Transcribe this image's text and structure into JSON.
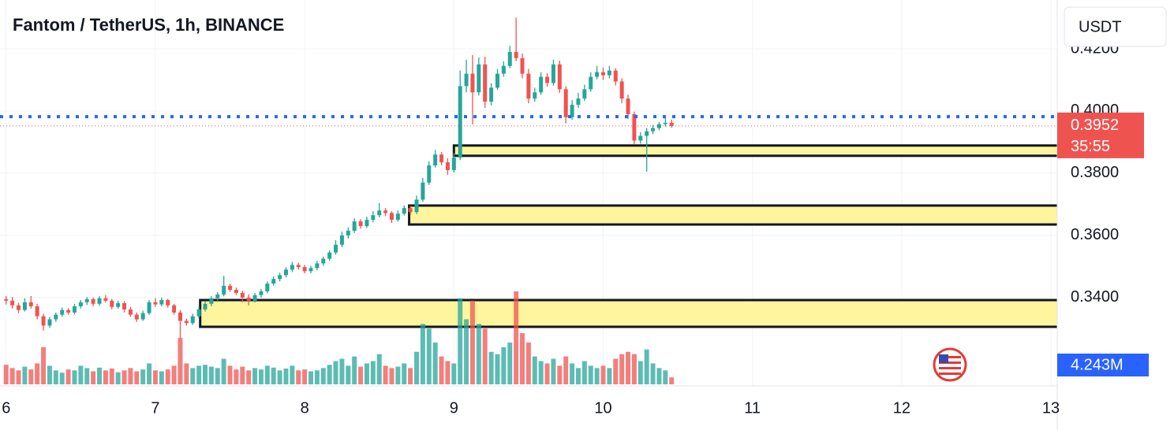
{
  "chart_data": {
    "type": "candlestick",
    "title": "Fantom / TetherUS, 1h, BINANCE",
    "currency": "USDT",
    "xlim": [
      5.959,
      13.042
    ],
    "xticks": [
      6,
      7,
      8,
      9,
      10,
      11,
      12,
      13
    ],
    "ylim": [
      0.3116,
      0.4357
    ],
    "yticks": [
      {
        "value": 0.34,
        "label": "0.3400"
      },
      {
        "value": 0.36,
        "label": "0.3600"
      },
      {
        "value": 0.38,
        "label": "0.3800"
      },
      {
        "value": 0.4,
        "label": "0.4000"
      },
      {
        "value": 0.42,
        "label": "0.4200"
      }
    ],
    "grid": true,
    "up_color": "#26a69a",
    "down_color": "#ef5350",
    "x": [
      6,
      6.0417,
      6.0833,
      6.125,
      6.1667,
      6.2083,
      6.25,
      6.2917,
      6.3333,
      6.375,
      6.4167,
      6.4583,
      6.5,
      6.5417,
      6.5833,
      6.625,
      6.6667,
      6.7083,
      6.75,
      6.7917,
      6.8333,
      6.875,
      6.9167,
      6.9583,
      7,
      7.0417,
      7.0833,
      7.125,
      7.1667,
      7.2083,
      7.25,
      7.2917,
      7.3333,
      7.375,
      7.4167,
      7.4583,
      7.5,
      7.5417,
      7.5833,
      7.625,
      7.6667,
      7.7083,
      7.75,
      7.7917,
      7.8333,
      7.875,
      7.9167,
      7.9583,
      8,
      8.0417,
      8.0833,
      8.125,
      8.1667,
      8.2083,
      8.25,
      8.2917,
      8.3333,
      8.375,
      8.4167,
      8.4583,
      8.5,
      8.5417,
      8.5833,
      8.625,
      8.6667,
      8.7083,
      8.75,
      8.7917,
      8.8333,
      8.875,
      8.9167,
      8.9583,
      9,
      9.0417,
      9.0833,
      9.125,
      9.1667,
      9.2083,
      9.25,
      9.2917,
      9.3333,
      9.375,
      9.4167,
      9.4583,
      9.5,
      9.5417,
      9.5833,
      9.625,
      9.6667,
      9.7083,
      9.75,
      9.7917,
      9.8333,
      9.875,
      9.9167,
      9.9583,
      10,
      10.0417,
      10.0833,
      10.125,
      10.1667,
      10.2083,
      10.25,
      10.2917,
      10.3333,
      10.375,
      10.4167,
      10.4583
    ],
    "candles": [
      [
        0.3395,
        0.3405,
        0.3378,
        0.339
      ],
      [
        0.339,
        0.3402,
        0.3365,
        0.3375
      ],
      [
        0.3375,
        0.3383,
        0.335,
        0.336
      ],
      [
        0.336,
        0.3398,
        0.3355,
        0.3385
      ],
      [
        0.3385,
        0.3405,
        0.3365,
        0.3372
      ],
      [
        0.3372,
        0.338,
        0.333,
        0.334
      ],
      [
        0.334,
        0.3348,
        0.3294,
        0.331
      ],
      [
        0.331,
        0.3338,
        0.3302,
        0.333
      ],
      [
        0.333,
        0.3352,
        0.3322,
        0.3345
      ],
      [
        0.3345,
        0.3368,
        0.3338,
        0.336
      ],
      [
        0.336,
        0.3366,
        0.3345,
        0.3352
      ],
      [
        0.3352,
        0.338,
        0.3346,
        0.3372
      ],
      [
        0.3372,
        0.3392,
        0.3365,
        0.3385
      ],
      [
        0.3385,
        0.3402,
        0.3376,
        0.3395
      ],
      [
        0.3395,
        0.34,
        0.3372,
        0.338
      ],
      [
        0.338,
        0.3405,
        0.3374,
        0.3398
      ],
      [
        0.3398,
        0.3408,
        0.3384,
        0.339
      ],
      [
        0.339,
        0.3396,
        0.3362,
        0.337
      ],
      [
        0.337,
        0.339,
        0.3364,
        0.3382
      ],
      [
        0.3382,
        0.3388,
        0.3352,
        0.3362
      ],
      [
        0.3362,
        0.337,
        0.3338,
        0.3345
      ],
      [
        0.3345,
        0.3352,
        0.3322,
        0.333
      ],
      [
        0.333,
        0.3358,
        0.3325,
        0.335
      ],
      [
        0.335,
        0.3392,
        0.3345,
        0.3385
      ],
      [
        0.3385,
        0.3398,
        0.337,
        0.3378
      ],
      [
        0.3378,
        0.34,
        0.3372,
        0.3392
      ],
      [
        0.3392,
        0.3396,
        0.3368,
        0.3375
      ],
      [
        0.3375,
        0.338,
        0.3345,
        0.3352
      ],
      [
        0.3352,
        0.336,
        0.327,
        0.3325
      ],
      [
        0.3325,
        0.3332,
        0.331,
        0.3318
      ],
      [
        0.3318,
        0.3348,
        0.3312,
        0.334
      ],
      [
        0.334,
        0.337,
        0.3334,
        0.3362
      ],
      [
        0.3362,
        0.3388,
        0.3355,
        0.338
      ],
      [
        0.338,
        0.3405,
        0.3372,
        0.3398
      ],
      [
        0.3398,
        0.3418,
        0.339,
        0.341
      ],
      [
        0.341,
        0.347,
        0.3404,
        0.3438
      ],
      [
        0.3438,
        0.3445,
        0.3418,
        0.3425
      ],
      [
        0.3425,
        0.3432,
        0.3408,
        0.3415
      ],
      [
        0.3415,
        0.3422,
        0.3385,
        0.34
      ],
      [
        0.34,
        0.341,
        0.3375,
        0.339
      ],
      [
        0.339,
        0.3415,
        0.3384,
        0.3408
      ],
      [
        0.3408,
        0.3428,
        0.34,
        0.342
      ],
      [
        0.342,
        0.3452,
        0.3414,
        0.3445
      ],
      [
        0.3445,
        0.3468,
        0.3438,
        0.346
      ],
      [
        0.346,
        0.348,
        0.3452,
        0.3472
      ],
      [
        0.3472,
        0.3498,
        0.3465,
        0.349
      ],
      [
        0.349,
        0.3515,
        0.3482,
        0.3505
      ],
      [
        0.3505,
        0.3512,
        0.349,
        0.3498
      ],
      [
        0.3498,
        0.3505,
        0.3478,
        0.3485
      ],
      [
        0.3485,
        0.3502,
        0.3478,
        0.3495
      ],
      [
        0.3495,
        0.3518,
        0.3488,
        0.351
      ],
      [
        0.351,
        0.3532,
        0.3502,
        0.3525
      ],
      [
        0.3525,
        0.3552,
        0.3518,
        0.3545
      ],
      [
        0.3545,
        0.3585,
        0.3538,
        0.357
      ],
      [
        0.357,
        0.3612,
        0.3562,
        0.36
      ],
      [
        0.36,
        0.3625,
        0.359,
        0.3615
      ],
      [
        0.3615,
        0.3655,
        0.3608,
        0.3645
      ],
      [
        0.3645,
        0.3652,
        0.3622,
        0.363
      ],
      [
        0.363,
        0.366,
        0.3624,
        0.365
      ],
      [
        0.365,
        0.3678,
        0.3642,
        0.3665
      ],
      [
        0.3665,
        0.3704,
        0.3658,
        0.368
      ],
      [
        0.368,
        0.3688,
        0.3662,
        0.3672
      ],
      [
        0.3672,
        0.3678,
        0.364,
        0.365
      ],
      [
        0.365,
        0.368,
        0.3644,
        0.367
      ],
      [
        0.367,
        0.3696,
        0.3664,
        0.3688
      ],
      [
        0.3688,
        0.3694,
        0.3665,
        0.3675
      ],
      [
        0.3675,
        0.3728,
        0.3668,
        0.3715
      ],
      [
        0.3715,
        0.3785,
        0.3708,
        0.377
      ],
      [
        0.377,
        0.3838,
        0.3762,
        0.3825
      ],
      [
        0.3825,
        0.3875,
        0.3818,
        0.386
      ],
      [
        0.386,
        0.3868,
        0.3825,
        0.3835
      ],
      [
        0.3835,
        0.3848,
        0.3795,
        0.381
      ],
      [
        0.381,
        0.3865,
        0.3802,
        0.385
      ],
      [
        0.385,
        0.413,
        0.3842,
        0.408
      ],
      [
        0.408,
        0.4165,
        0.406,
        0.412
      ],
      [
        0.412,
        0.418,
        0.3957,
        0.406
      ],
      [
        0.406,
        0.4172,
        0.405,
        0.415
      ],
      [
        0.415,
        0.4175,
        0.401,
        0.403
      ],
      [
        0.403,
        0.409,
        0.4018,
        0.4075
      ],
      [
        0.4075,
        0.4135,
        0.4068,
        0.412
      ],
      [
        0.412,
        0.416,
        0.411,
        0.4145
      ],
      [
        0.4145,
        0.421,
        0.4138,
        0.419
      ],
      [
        0.419,
        0.43,
        0.416,
        0.417
      ],
      [
        0.417,
        0.4185,
        0.4105,
        0.412
      ],
      [
        0.412,
        0.4135,
        0.4025,
        0.404
      ],
      [
        0.404,
        0.4075,
        0.403,
        0.406
      ],
      [
        0.406,
        0.4125,
        0.4052,
        0.411
      ],
      [
        0.411,
        0.4122,
        0.4078,
        0.409
      ],
      [
        0.409,
        0.4165,
        0.4082,
        0.415
      ],
      [
        0.415,
        0.4162,
        0.4058,
        0.407
      ],
      [
        0.407,
        0.408,
        0.396,
        0.398
      ],
      [
        0.398,
        0.4035,
        0.3972,
        0.402
      ],
      [
        0.402,
        0.4058,
        0.401,
        0.404
      ],
      [
        0.404,
        0.4085,
        0.4032,
        0.407
      ],
      [
        0.407,
        0.4125,
        0.4062,
        0.411
      ],
      [
        0.411,
        0.4145,
        0.4102,
        0.4125
      ],
      [
        0.4125,
        0.414,
        0.41,
        0.4115
      ],
      [
        0.4115,
        0.4145,
        0.4105,
        0.413
      ],
      [
        0.413,
        0.4138,
        0.4082,
        0.4095
      ],
      [
        0.4095,
        0.4105,
        0.4025,
        0.404
      ],
      [
        0.404,
        0.4052,
        0.3975,
        0.399
      ],
      [
        0.399,
        0.3998,
        0.3892,
        0.3905
      ],
      [
        0.3905,
        0.3932,
        0.3895,
        0.392
      ],
      [
        0.392,
        0.3945,
        0.3805,
        0.3935
      ],
      [
        0.3935,
        0.3955,
        0.3925,
        0.3945
      ],
      [
        0.3945,
        0.3965,
        0.3938,
        0.3958
      ],
      [
        0.3958,
        0.3978,
        0.395,
        0.3962
      ],
      [
        0.3962,
        0.3972,
        0.3946,
        0.3952
      ]
    ],
    "volume": [
      4.2,
      3.5,
      3.0,
      3.8,
      3.2,
      4.5,
      8.0,
      4.0,
      3.0,
      2.5,
      3.2,
      3.0,
      4.0,
      3.5,
      2.8,
      3.6,
      3.0,
      3.4,
      2.6,
      3.0,
      3.5,
      2.8,
      3.2,
      4.5,
      3.0,
      2.8,
      3.2,
      4.0,
      10.0,
      4.5,
      3.5,
      4.0,
      4.2,
      3.8,
      3.5,
      5.5,
      4.0,
      3.2,
      3.8,
      3.0,
      3.5,
      3.2,
      4.0,
      3.6,
      3.0,
      3.4,
      4.0,
      3.0,
      3.2,
      2.8,
      3.0,
      3.5,
      4.2,
      5.0,
      5.5,
      4.0,
      6.0,
      3.8,
      4.5,
      5.0,
      6.5,
      4.0,
      3.5,
      3.8,
      4.5,
      3.5,
      7.0,
      13.0,
      12.0,
      9.0,
      6.0,
      5.0,
      4.5,
      18.5,
      14.0,
      18.0,
      13.0,
      12.0,
      7.0,
      6.5,
      8.0,
      9.0,
      20.0,
      11.0,
      9.0,
      6.0,
      5.0,
      4.5,
      5.5,
      4.0,
      6.0,
      4.5,
      3.5,
      5.0,
      4.0,
      3.5,
      4.0,
      3.5,
      5.5,
      6.5,
      7.0,
      6.5,
      5.0,
      7.5,
      4.5,
      3.5,
      3.0,
      1.5
    ],
    "zones": [
      {
        "low": 0.3856,
        "high": 0.3889,
        "start": 9.0
      },
      {
        "low": 0.3635,
        "high": 0.3696,
        "start": 8.7
      },
      {
        "low": 0.3306,
        "high": 0.3392,
        "start": 7.3
      }
    ],
    "alert_line": 0.3982,
    "last_price": 0.3952,
    "countdown": "35:55",
    "volume_label": "4.243M"
  }
}
